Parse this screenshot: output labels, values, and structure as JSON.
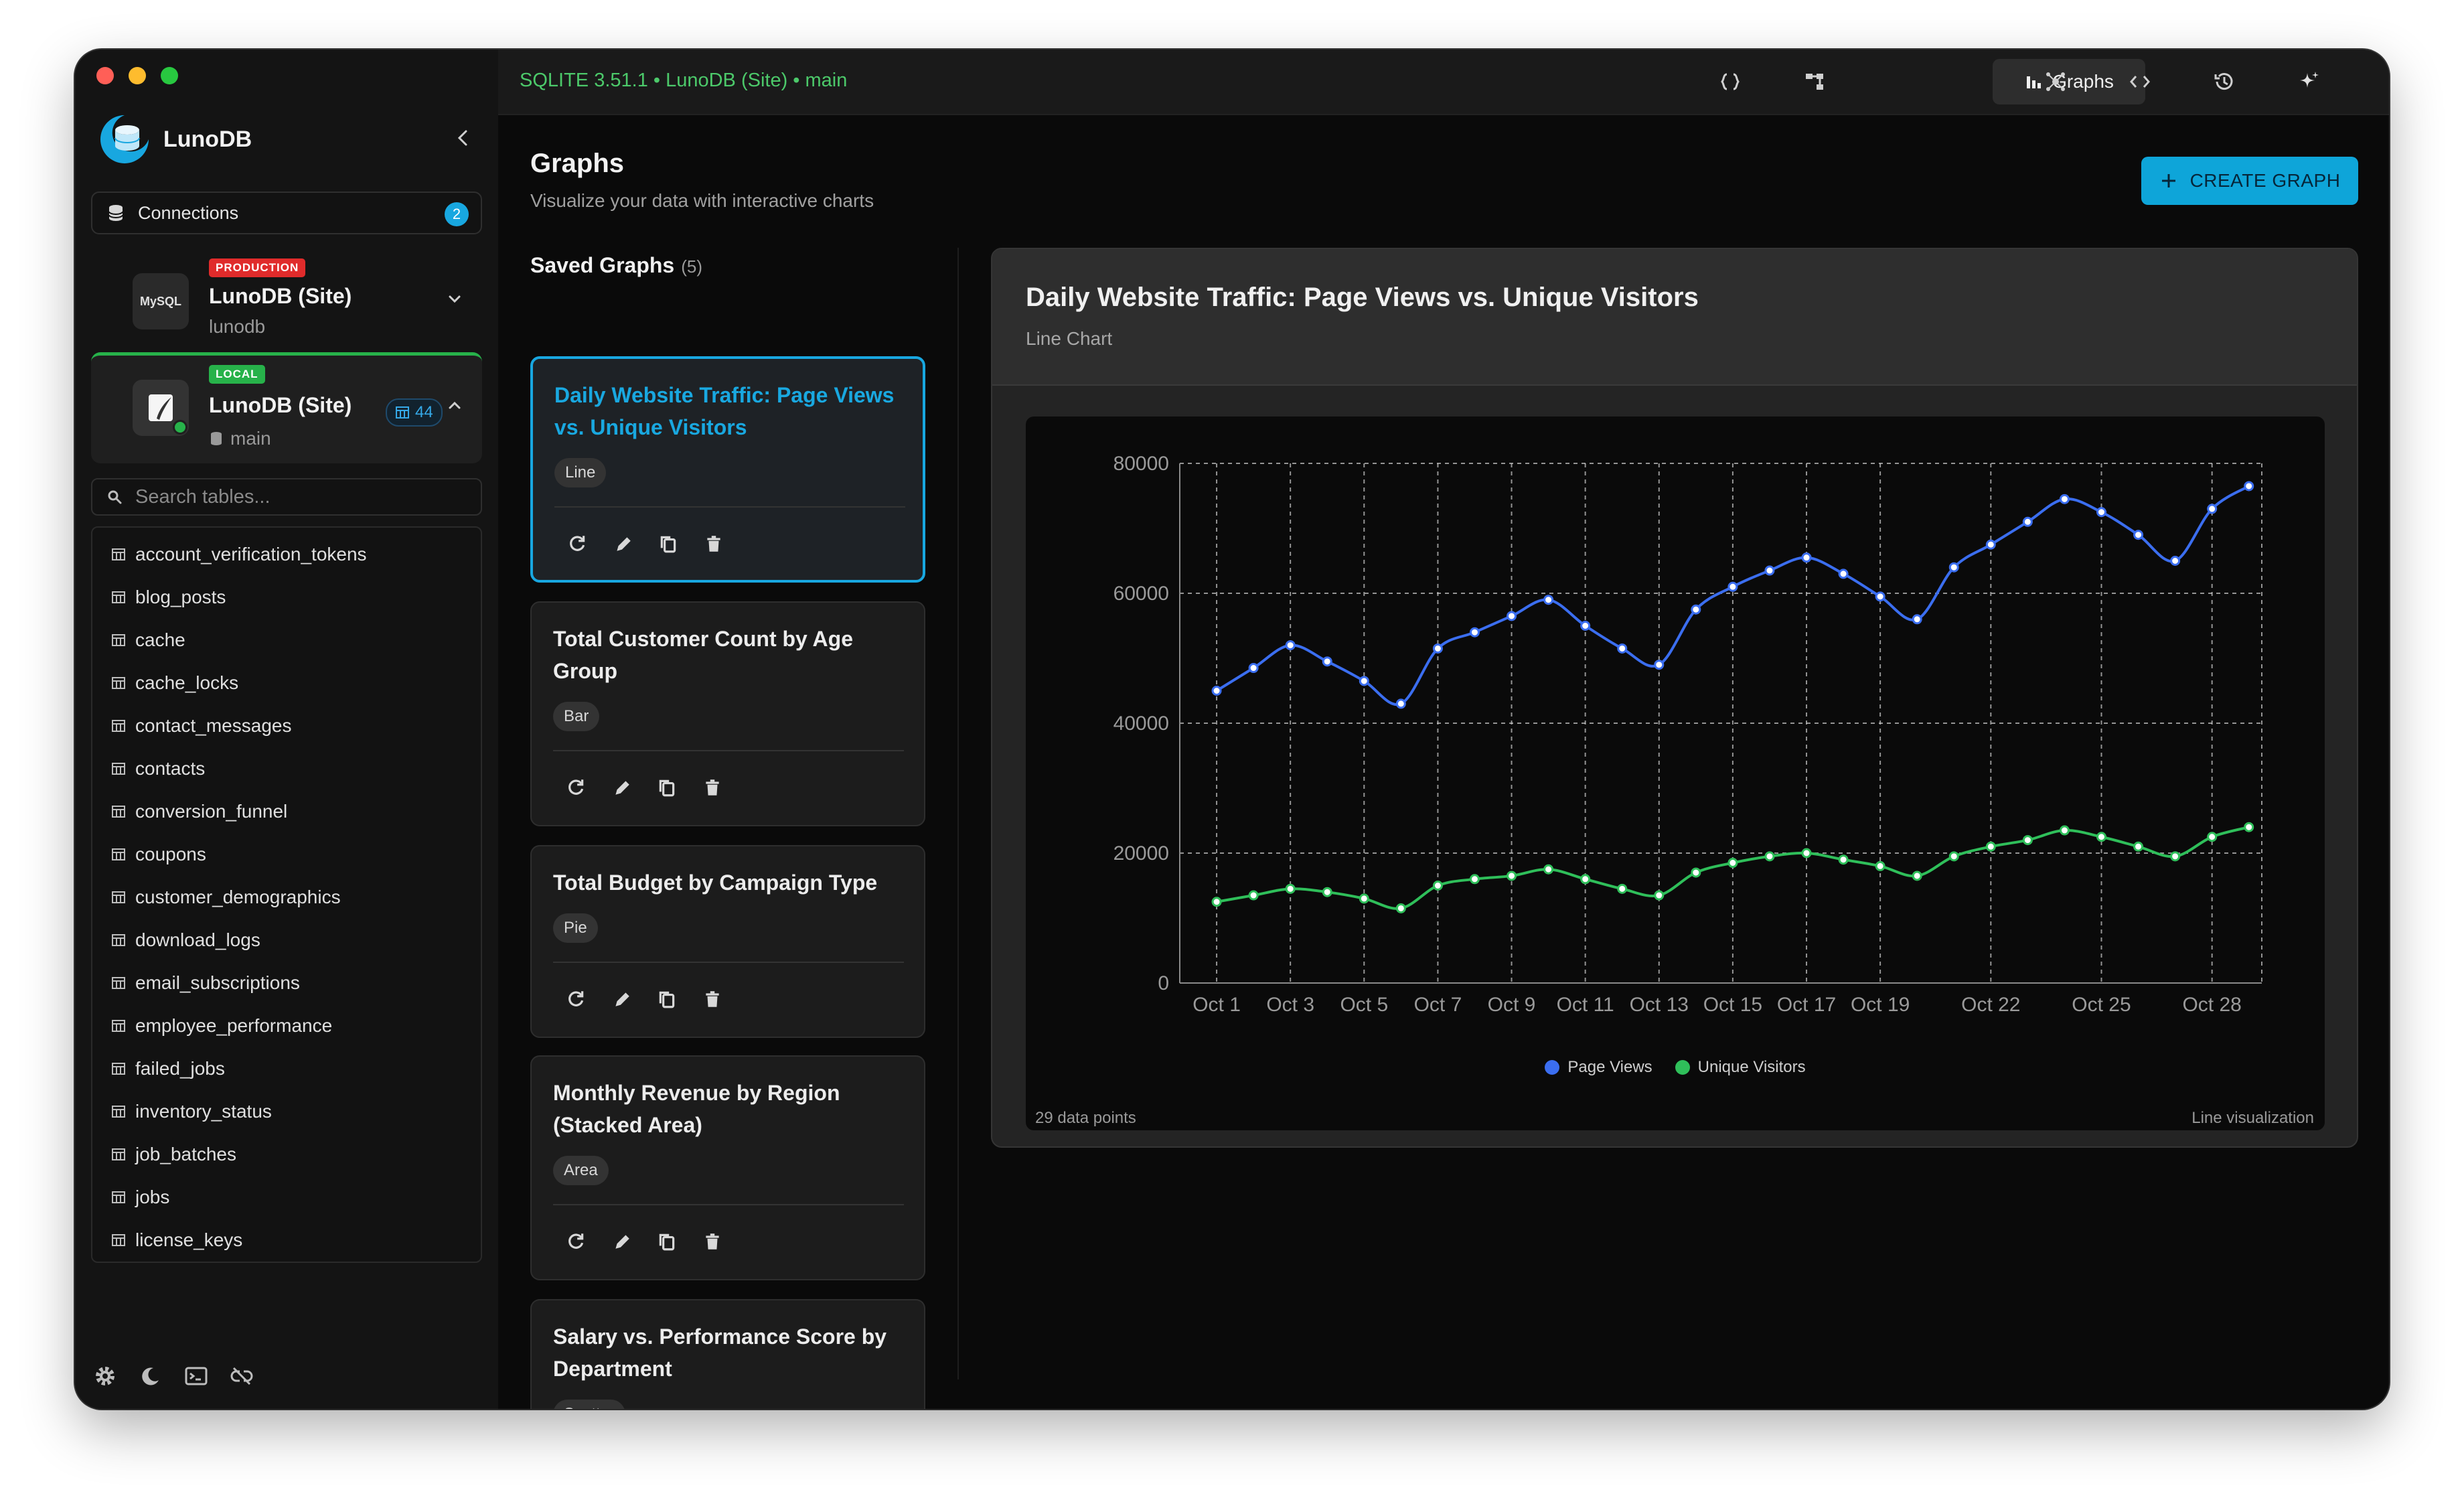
{
  "sidebar": {
    "brand": "LunoDB",
    "connections": {
      "label": "Connections",
      "count": "2"
    },
    "databases": [
      {
        "tag": "PRODUCTION",
        "name": "LunoDB (Site)",
        "sub": "lunodb",
        "icon_text": "MySQL"
      },
      {
        "tag": "LOCAL",
        "name": "LunoDB (Site)",
        "sub": "main",
        "table_count": "44"
      }
    ],
    "search_placeholder": "Search tables...",
    "tables": [
      "account_verification_tokens",
      "blog_posts",
      "cache",
      "cache_locks",
      "contact_messages",
      "contacts",
      "conversion_funnel",
      "coupons",
      "customer_demographics",
      "download_logs",
      "email_subscriptions",
      "employee_performance",
      "failed_jobs",
      "inventory_status",
      "job_batches",
      "jobs",
      "license_keys"
    ]
  },
  "topbar": {
    "connection_string": "SQLITE 3.51.1 • LunoDB (Site) • main",
    "active_tab": "Graphs"
  },
  "main": {
    "title": "Graphs",
    "subtitle": "Visualize your data with interactive charts",
    "create_button": "CREATE GRAPH",
    "saved_graphs_label": "Saved Graphs",
    "saved_graphs_count": "(5)",
    "graphs": [
      {
        "title": "Daily Website Traffic: Page Views vs. Unique Visitors",
        "type": "Line"
      },
      {
        "title": "Total Customer Count by Age Group",
        "type": "Bar"
      },
      {
        "title": "Total Budget by Campaign Type",
        "type": "Pie"
      },
      {
        "title": "Monthly Revenue by Region (Stacked Area)",
        "type": "Area"
      },
      {
        "title": "Salary vs. Performance Score by Department",
        "type": "Scatter"
      }
    ]
  },
  "chart_panel": {
    "title": "Daily Website Traffic: Page Views vs. Unique Visitors",
    "subtitle": "Line Chart",
    "footer_left": "29 data points",
    "footer_right": "Line visualization"
  },
  "colors": {
    "accent": "#18a7e0",
    "page_views": "#3b6ef0",
    "unique_visitors": "#2fbf5a",
    "production_tag": "#e02b2b",
    "local_tag": "#27b24a"
  },
  "chart_data": {
    "type": "line",
    "x": [
      "Oct 1",
      "Oct 2",
      "Oct 3",
      "Oct 4",
      "Oct 5",
      "Oct 6",
      "Oct 7",
      "Oct 8",
      "Oct 9",
      "Oct 10",
      "Oct 11",
      "Oct 12",
      "Oct 13",
      "Oct 14",
      "Oct 15",
      "Oct 16",
      "Oct 17",
      "Oct 18",
      "Oct 19",
      "Oct 20",
      "Oct 21",
      "Oct 22",
      "Oct 23",
      "Oct 24",
      "Oct 25",
      "Oct 26",
      "Oct 27",
      "Oct 28",
      "Oct 29"
    ],
    "x_tick_labels": [
      "Oct 1",
      "Oct 3",
      "Oct 5",
      "Oct 7",
      "Oct 9",
      "Oct 11",
      "Oct 13",
      "Oct 15",
      "Oct 17",
      "Oct 19",
      "Oct 22",
      "Oct 25",
      "Oct 28"
    ],
    "series": [
      {
        "name": "Page Views",
        "color": "#3b6ef0",
        "values": [
          45000,
          48500,
          52000,
          49500,
          46500,
          43000,
          51500,
          54000,
          56500,
          59000,
          55000,
          51500,
          49000,
          57500,
          61000,
          63500,
          65500,
          63000,
          59500,
          56000,
          64000,
          67500,
          71000,
          74500,
          72500,
          69000,
          65000,
          73000,
          76500
        ]
      },
      {
        "name": "Unique Visitors",
        "color": "#2fbf5a",
        "values": [
          12500,
          13500,
          14500,
          14000,
          13000,
          11500,
          15000,
          16000,
          16500,
          17500,
          16000,
          14500,
          13500,
          17000,
          18500,
          19500,
          20000,
          19000,
          18000,
          16500,
          19500,
          21000,
          22000,
          23500,
          22500,
          21000,
          19500,
          22500,
          24000
        ]
      }
    ],
    "y_ticks": [
      0,
      20000,
      40000,
      60000,
      80000
    ],
    "ylim": [
      0,
      80000
    ],
    "grid": true,
    "legend": "bottom-center"
  }
}
